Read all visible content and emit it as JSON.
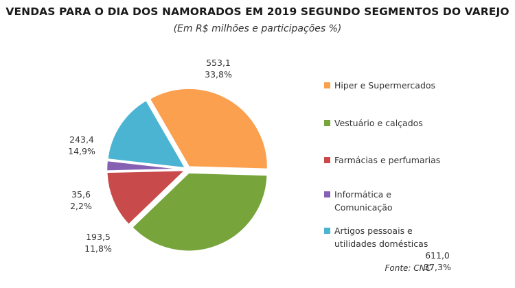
{
  "chart_data": {
    "type": "pie",
    "title": "VENDAS PARA O DIA DOS NAMORADOS EM 2019 SEGUNDO SEGMENTOS DO VAREJO",
    "subtitle": "(Em R$ milhões e participações %)",
    "source": "Fonte: CNC",
    "legend_position": "right",
    "slices": [
      {
        "legend": [
          "Hiper e Supermercados"
        ],
        "value": 553.1,
        "value_label": "553,1",
        "pct_label": "33,8%",
        "color": "#FBA04F"
      },
      {
        "legend": [
          "Vestuário e calçados"
        ],
        "value": 611.0,
        "value_label": "611,0",
        "pct_label": "37,3%",
        "color": "#77A43B"
      },
      {
        "legend": [
          "Farmácias e perfumarias"
        ],
        "value": 193.5,
        "value_label": "193,5",
        "pct_label": "11,8%",
        "color": "#C94A4A"
      },
      {
        "legend": [
          "Informática e",
          "Comunicação"
        ],
        "value": 35.6,
        "value_label": "35,6",
        "pct_label": "2,2%",
        "color": "#8660B2"
      },
      {
        "legend": [
          "Artigos pessoais e",
          "utilidades domésticas"
        ],
        "value": 243.4,
        "value_label": "243,4",
        "pct_label": "14,9%",
        "color": "#4AB4D2"
      }
    ]
  }
}
